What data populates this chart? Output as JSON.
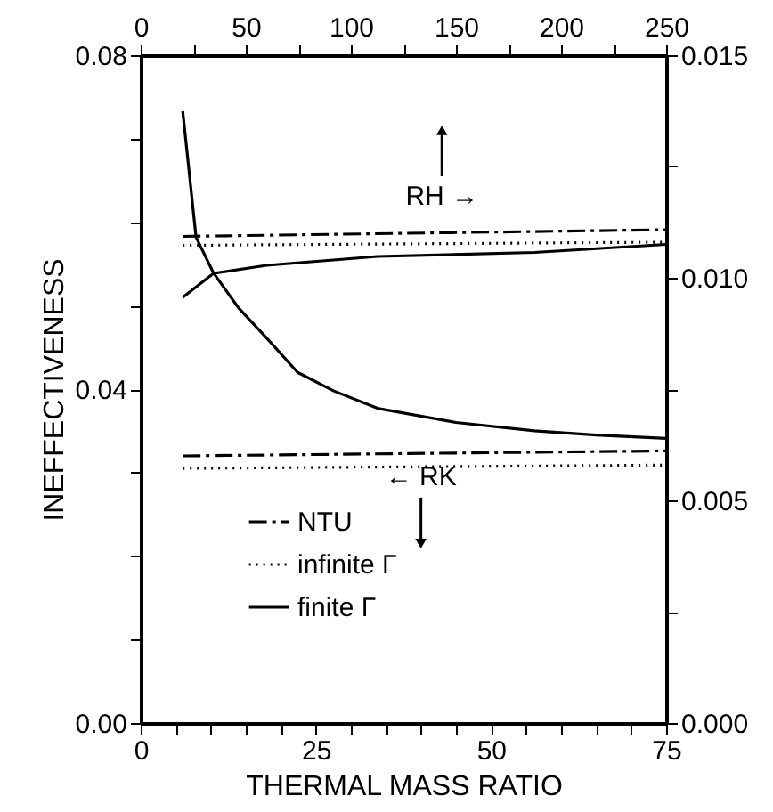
{
  "chart_data": {
    "type": "line",
    "xlabel": "THERMAL MASS RATIO",
    "ylabel": "INEFFECTIVENESS",
    "xlim": [
      0,
      75
    ],
    "xticks": [
      0,
      {
        "value": 5,
        "label": null
      },
      {
        "value": 10,
        "label": null
      },
      {
        "value": 15,
        "label": null
      },
      {
        "value": 20,
        "label": null
      },
      25,
      {
        "value": 30,
        "label": null
      },
      {
        "value": 35,
        "label": null
      },
      {
        "value": 40,
        "label": null
      },
      {
        "value": 45,
        "label": null
      },
      50,
      {
        "value": 55,
        "label": null
      },
      {
        "value": 60,
        "label": null
      },
      {
        "value": 65,
        "label": null
      },
      {
        "value": 70,
        "label": null
      },
      75
    ],
    "x2lim": [
      0,
      250
    ],
    "x2ticks": [
      0,
      {
        "value": 25,
        "label": null
      },
      50,
      {
        "value": 75,
        "label": null
      },
      100,
      {
        "value": 125,
        "label": null
      },
      150,
      {
        "value": 175,
        "label": null
      },
      200,
      {
        "value": 225,
        "label": null
      },
      250
    ],
    "ylim": [
      0,
      0.08
    ],
    "yticks": [
      {
        "value": 0,
        "label": "0.00"
      },
      {
        "value": 0.01,
        "label": null
      },
      {
        "value": 0.02,
        "label": null
      },
      {
        "value": 0.03,
        "label": null
      },
      0.04,
      {
        "value": 0.05,
        "label": null
      },
      {
        "value": 0.06,
        "label": null
      },
      {
        "value": 0.07,
        "label": null
      },
      0.08
    ],
    "y2lim": [
      0,
      0.015
    ],
    "y2ticks": [
      {
        "value": 0,
        "label": "0.000"
      },
      {
        "value": 0.0025,
        "label": null
      },
      {
        "value": 0.005,
        "label": "0.005"
      },
      {
        "value": 0.0075,
        "label": null
      },
      {
        "value": 0.01,
        "label": "0.010"
      },
      {
        "value": 0.0125,
        "label": null
      },
      0.015
    ],
    "grid": false,
    "legend": "bottom",
    "marker": "none",
    "annotations": [
      "RH →",
      "← RK"
    ],
    "series": [
      {
        "name": "NTU",
        "color": "#000000",
        "line_style": "dashed",
        "x": [
          6,
          75
        ],
        "values": [
          0.032,
          0.0326
        ]
      },
      {
        "name": "infinite Γ",
        "color": "#000000",
        "line_style": "dotted",
        "x": [
          6,
          75
        ],
        "values": [
          0.0305,
          0.0309
        ]
      },
      {
        "name": "finite Γ",
        "color": "#000000",
        "line_style": "solid",
        "x": [
          6,
          7.9,
          10.4,
          14,
          18,
          22.4,
          27.5,
          33.8,
          45,
          56.2,
          65,
          75
        ],
        "values": [
          0.0733,
          0.0582,
          0.0539,
          0.0497,
          0.0461,
          0.042,
          0.0398,
          0.0377,
          0.036,
          0.035,
          0.0345,
          0.0341
        ]
      },
      {
        "color": "#000000",
        "line_style": "dashed",
        "axis": "y2",
        "x": [
          6,
          75
        ],
        "values": [
          0.01093,
          0.01108
        ]
      },
      {
        "color": "#000000",
        "line_style": "dotted",
        "axis": "y2",
        "x": [
          6,
          75
        ],
        "values": [
          0.01073,
          0.0108
        ]
      },
      {
        "color": "#000000",
        "line_style": "solid",
        "axis": "y2",
        "x": [
          6,
          10.4,
          18,
          33.8,
          56.2,
          75
        ],
        "values": [
          0.00956,
          0.0101,
          0.01028,
          0.01048,
          0.01057,
          0.01075
        ]
      }
    ]
  }
}
